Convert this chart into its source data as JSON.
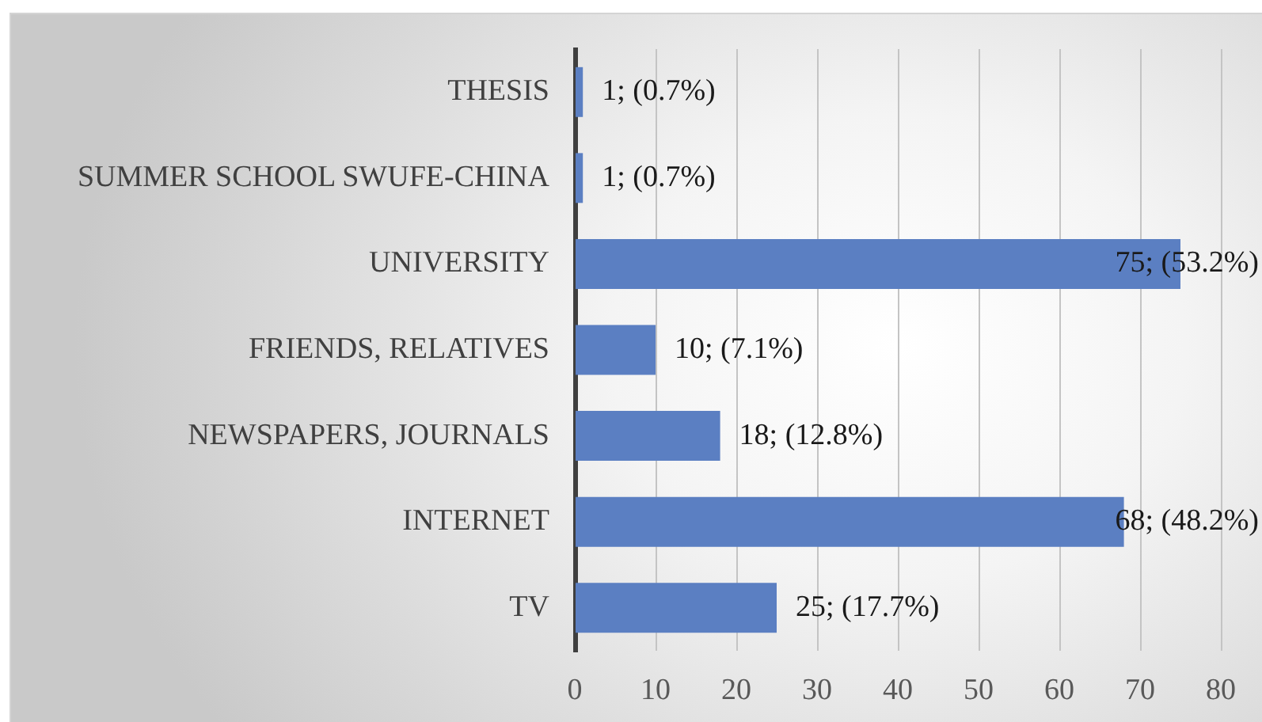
{
  "chart_data": {
    "type": "bar",
    "orientation": "horizontal",
    "categories": [
      "THESIS",
      "SUMMER SCHOOL SWUFE-CHINA",
      "UNIVERSITY",
      "FRIENDS, RELATIVES",
      "NEWSPAPERS, JOURNALS",
      "INTERNET",
      "TV"
    ],
    "values": [
      1,
      1,
      75,
      10,
      18,
      68,
      25
    ],
    "color": "#5b7fc2",
    "value_labels": [
      "1; (0.7%)",
      "1; (0.7%)",
      "75; (53.2%)",
      "10; (7.1%)",
      "18; (12.8%)",
      "68; (48.2%)",
      "25; (17.7%)"
    ],
    "xlim": [
      0,
      80
    ],
    "xticks": [
      0,
      10,
      20,
      30,
      40,
      50,
      60,
      70,
      80
    ],
    "grid": "x"
  }
}
